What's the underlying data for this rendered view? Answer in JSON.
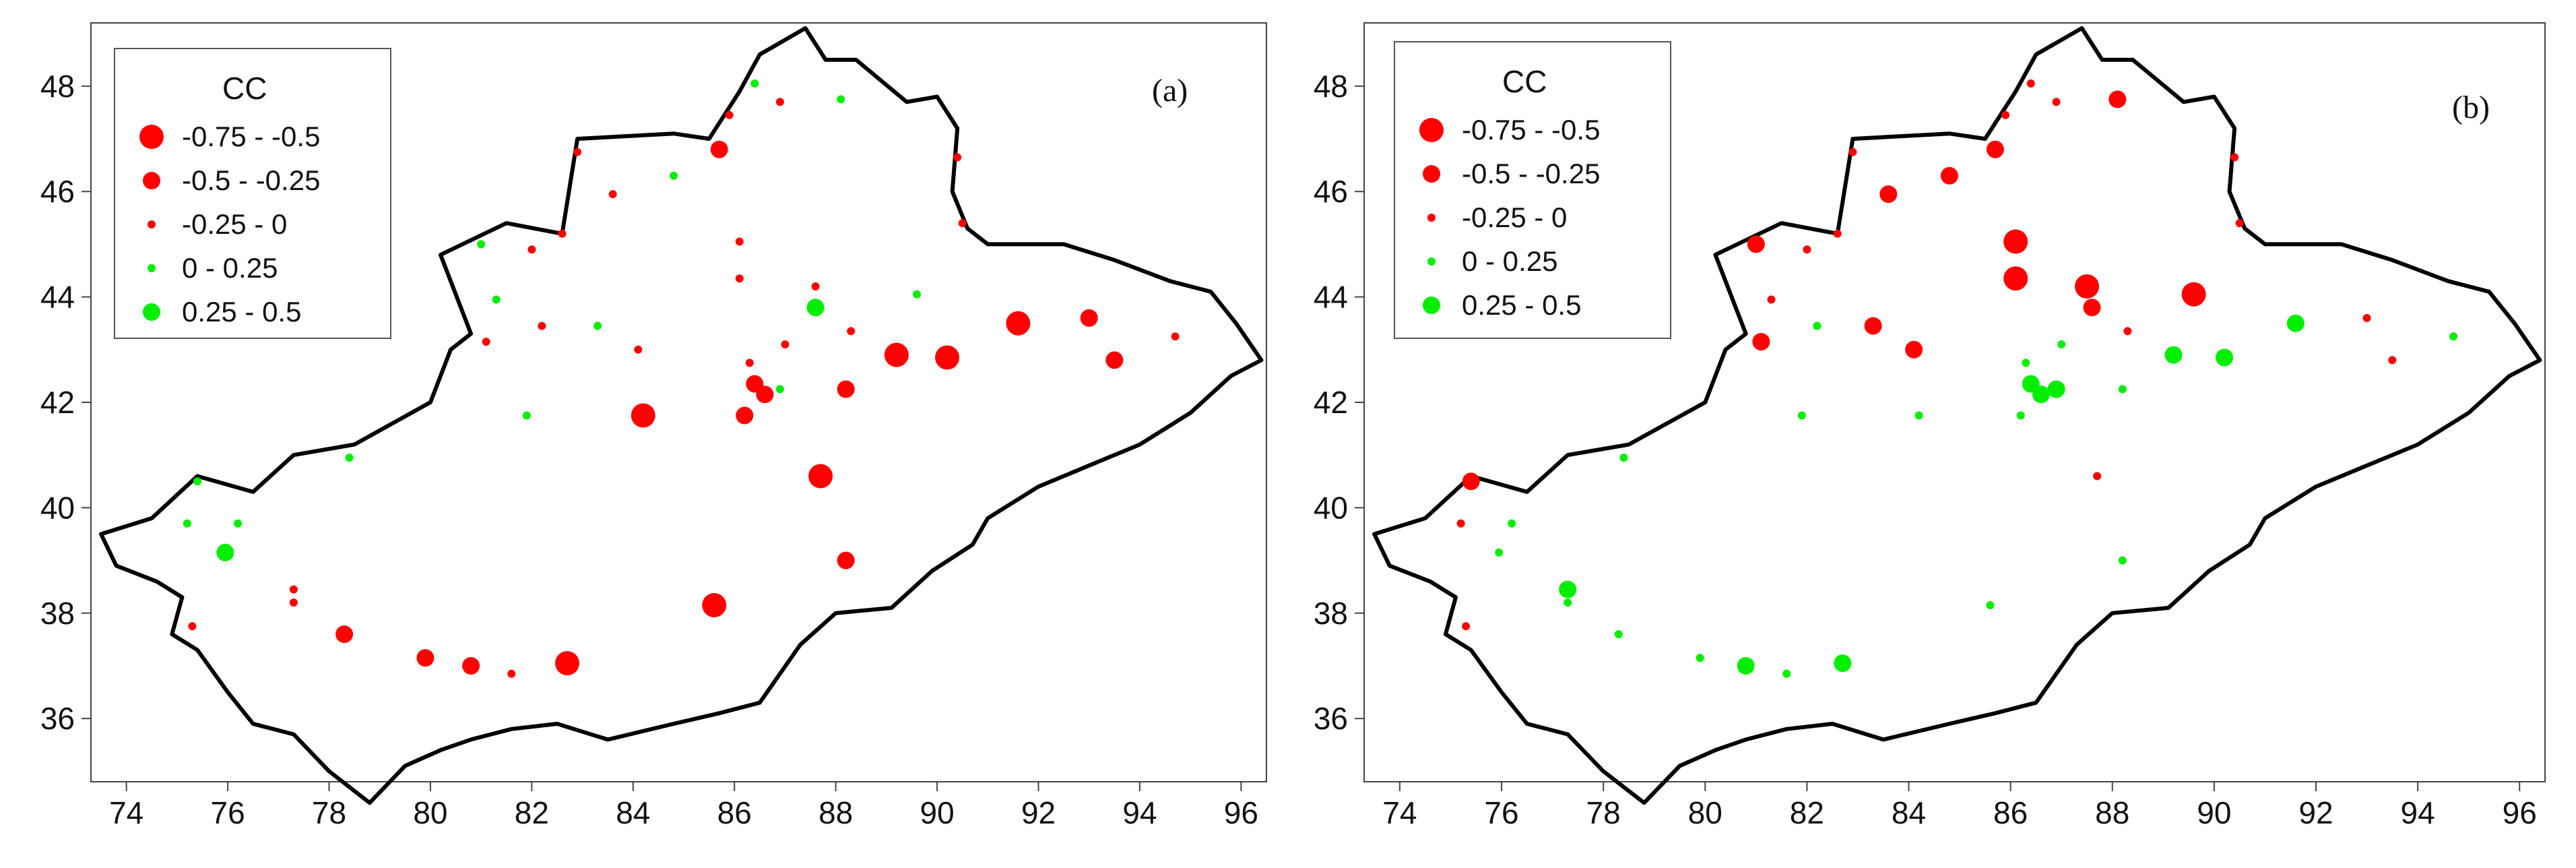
{
  "legend": {
    "title": "CC",
    "classes": [
      {
        "label": "-0.75  -  -0.5",
        "color": "#ff0000",
        "size": "xl"
      },
      {
        "label": "-0.5  -  -0.25",
        "color": "#ff0000",
        "size": "lg"
      },
      {
        "label": "-0.25  -  0",
        "color": "#ff0000",
        "size": "sm"
      },
      {
        "label": "0  -  0.25",
        "color": "#00ee00",
        "size": "sm"
      },
      {
        "label": "0.25  -  0.5",
        "color": "#00ee00",
        "size": "lg"
      }
    ]
  },
  "axes": {
    "lon_ticks": [
      74,
      76,
      78,
      80,
      82,
      84,
      86,
      88,
      90,
      92,
      94,
      96
    ],
    "lat_ticks": [
      36,
      38,
      40,
      42,
      44,
      46,
      48
    ],
    "lon_range": [
      73.3,
      96.5
    ],
    "lat_range": [
      34.8,
      49.2
    ]
  },
  "outline": [
    [
      73.5,
      39.5
    ],
    [
      74.5,
      39.8
    ],
    [
      75.4,
      40.6
    ],
    [
      76.5,
      40.3
    ],
    [
      77.3,
      41.0
    ],
    [
      78.5,
      41.2
    ],
    [
      80.0,
      42.0
    ],
    [
      80.4,
      43.0
    ],
    [
      80.8,
      43.3
    ],
    [
      80.2,
      44.8
    ],
    [
      81.5,
      45.4
    ],
    [
      82.6,
      45.2
    ],
    [
      82.9,
      47.0
    ],
    [
      84.8,
      47.1
    ],
    [
      85.5,
      47.0
    ],
    [
      86.1,
      47.9
    ],
    [
      86.5,
      48.6
    ],
    [
      87.4,
      49.1
    ],
    [
      87.8,
      48.5
    ],
    [
      88.4,
      48.5
    ],
    [
      89.4,
      47.7
    ],
    [
      90.0,
      47.8
    ],
    [
      90.4,
      47.2
    ],
    [
      90.3,
      46.0
    ],
    [
      90.6,
      45.3
    ],
    [
      91.0,
      45.0
    ],
    [
      92.5,
      45.0
    ],
    [
      93.5,
      44.7
    ],
    [
      94.6,
      44.3
    ],
    [
      95.4,
      44.1
    ],
    [
      95.9,
      43.5
    ],
    [
      96.4,
      42.8
    ],
    [
      95.8,
      42.5
    ],
    [
      95.0,
      41.8
    ],
    [
      94.0,
      41.2
    ],
    [
      93.0,
      40.8
    ],
    [
      92.0,
      40.4
    ],
    [
      91.0,
      39.8
    ],
    [
      90.7,
      39.3
    ],
    [
      89.9,
      38.8
    ],
    [
      89.1,
      38.1
    ],
    [
      88.0,
      38.0
    ],
    [
      87.3,
      37.4
    ],
    [
      86.5,
      36.3
    ],
    [
      85.7,
      36.1
    ],
    [
      84.8,
      35.9
    ],
    [
      83.5,
      35.6
    ],
    [
      82.5,
      35.9
    ],
    [
      81.6,
      35.8
    ],
    [
      80.8,
      35.6
    ],
    [
      80.2,
      35.4
    ],
    [
      79.5,
      35.1
    ],
    [
      78.8,
      34.4
    ],
    [
      78.0,
      35.0
    ],
    [
      77.3,
      35.7
    ],
    [
      76.5,
      35.9
    ],
    [
      76.0,
      36.5
    ],
    [
      75.4,
      37.3
    ],
    [
      74.9,
      37.6
    ],
    [
      75.1,
      38.3
    ],
    [
      74.6,
      38.6
    ],
    [
      73.8,
      38.9
    ],
    [
      73.5,
      39.5
    ]
  ],
  "panels": [
    {
      "label": "(a)",
      "stations": [
        {
          "lon": 86.4,
          "lat": 48.05,
          "cls": 3
        },
        {
          "lon": 88.1,
          "lat": 47.75,
          "cls": 3
        },
        {
          "lon": 85.9,
          "lat": 47.45,
          "cls": 2
        },
        {
          "lon": 86.9,
          "lat": 47.7,
          "cls": 2
        },
        {
          "lon": 82.9,
          "lat": 46.75,
          "cls": 2
        },
        {
          "lon": 85.7,
          "lat": 46.8,
          "cls": 1
        },
        {
          "lon": 84.8,
          "lat": 46.3,
          "cls": 3
        },
        {
          "lon": 90.4,
          "lat": 46.65,
          "cls": 2
        },
        {
          "lon": 83.6,
          "lat": 45.95,
          "cls": 2
        },
        {
          "lon": 90.5,
          "lat": 45.4,
          "cls": 2
        },
        {
          "lon": 81.0,
          "lat": 45.0,
          "cls": 3
        },
        {
          "lon": 82.0,
          "lat": 44.9,
          "cls": 2
        },
        {
          "lon": 82.6,
          "lat": 45.2,
          "cls": 2
        },
        {
          "lon": 86.1,
          "lat": 45.05,
          "cls": 2
        },
        {
          "lon": 86.1,
          "lat": 44.35,
          "cls": 2
        },
        {
          "lon": 87.6,
          "lat": 44.2,
          "cls": 2
        },
        {
          "lon": 87.6,
          "lat": 43.8,
          "cls": 4
        },
        {
          "lon": 89.6,
          "lat": 44.05,
          "cls": 3
        },
        {
          "lon": 81.3,
          "lat": 43.95,
          "cls": 3
        },
        {
          "lon": 82.2,
          "lat": 43.45,
          "cls": 2
        },
        {
          "lon": 83.3,
          "lat": 43.45,
          "cls": 3
        },
        {
          "lon": 81.1,
          "lat": 43.15,
          "cls": 2
        },
        {
          "lon": 84.1,
          "lat": 43.0,
          "cls": 2
        },
        {
          "lon": 87.0,
          "lat": 43.1,
          "cls": 2
        },
        {
          "lon": 88.3,
          "lat": 43.35,
          "cls": 2
        },
        {
          "lon": 89.2,
          "lat": 42.9,
          "cls": 0
        },
        {
          "lon": 90.2,
          "lat": 42.85,
          "cls": 0
        },
        {
          "lon": 91.6,
          "lat": 43.5,
          "cls": 0
        },
        {
          "lon": 93.0,
          "lat": 43.6,
          "cls": 1
        },
        {
          "lon": 94.7,
          "lat": 43.25,
          "cls": 2
        },
        {
          "lon": 93.5,
          "lat": 42.8,
          "cls": 1
        },
        {
          "lon": 86.3,
          "lat": 42.75,
          "cls": 2
        },
        {
          "lon": 86.4,
          "lat": 42.35,
          "cls": 1
        },
        {
          "lon": 86.6,
          "lat": 42.15,
          "cls": 1
        },
        {
          "lon": 86.9,
          "lat": 42.25,
          "cls": 3
        },
        {
          "lon": 88.2,
          "lat": 42.25,
          "cls": 1
        },
        {
          "lon": 86.2,
          "lat": 41.75,
          "cls": 1
        },
        {
          "lon": 84.2,
          "lat": 41.75,
          "cls": 0
        },
        {
          "lon": 81.9,
          "lat": 41.75,
          "cls": 3
        },
        {
          "lon": 78.4,
          "lat": 40.95,
          "cls": 3
        },
        {
          "lon": 75.4,
          "lat": 40.5,
          "cls": 3
        },
        {
          "lon": 75.2,
          "lat": 39.7,
          "cls": 3
        },
        {
          "lon": 76.2,
          "lat": 39.7,
          "cls": 3
        },
        {
          "lon": 75.95,
          "lat": 39.15,
          "cls": 4
        },
        {
          "lon": 87.7,
          "lat": 40.6,
          "cls": 0
        },
        {
          "lon": 88.2,
          "lat": 39.0,
          "cls": 1
        },
        {
          "lon": 77.3,
          "lat": 38.45,
          "cls": 2
        },
        {
          "lon": 77.3,
          "lat": 38.2,
          "cls": 2
        },
        {
          "lon": 75.3,
          "lat": 37.75,
          "cls": 2
        },
        {
          "lon": 78.3,
          "lat": 37.6,
          "cls": 1
        },
        {
          "lon": 85.6,
          "lat": 38.15,
          "cls": 0
        },
        {
          "lon": 79.9,
          "lat": 37.15,
          "cls": 1
        },
        {
          "lon": 80.8,
          "lat": 37.0,
          "cls": 1
        },
        {
          "lon": 81.6,
          "lat": 36.85,
          "cls": 2
        },
        {
          "lon": 82.7,
          "lat": 37.05,
          "cls": 0
        }
      ]
    },
    {
      "label": "(b)",
      "stations": [
        {
          "lon": 86.4,
          "lat": 48.05,
          "cls": 2
        },
        {
          "lon": 88.1,
          "lat": 47.75,
          "cls": 1
        },
        {
          "lon": 85.9,
          "lat": 47.45,
          "cls": 2
        },
        {
          "lon": 86.9,
          "lat": 47.7,
          "cls": 2
        },
        {
          "lon": 82.9,
          "lat": 46.75,
          "cls": 2
        },
        {
          "lon": 85.7,
          "lat": 46.8,
          "cls": 1
        },
        {
          "lon": 84.8,
          "lat": 46.3,
          "cls": 1
        },
        {
          "lon": 90.4,
          "lat": 46.65,
          "cls": 2
        },
        {
          "lon": 83.6,
          "lat": 45.95,
          "cls": 1
        },
        {
          "lon": 90.5,
          "lat": 45.4,
          "cls": 2
        },
        {
          "lon": 81.0,
          "lat": 45.0,
          "cls": 1
        },
        {
          "lon": 82.0,
          "lat": 44.9,
          "cls": 2
        },
        {
          "lon": 82.6,
          "lat": 45.2,
          "cls": 2
        },
        {
          "lon": 86.1,
          "lat": 45.05,
          "cls": 0
        },
        {
          "lon": 86.1,
          "lat": 44.35,
          "cls": 0
        },
        {
          "lon": 87.5,
          "lat": 44.2,
          "cls": 0
        },
        {
          "lon": 87.6,
          "lat": 43.8,
          "cls": 1
        },
        {
          "lon": 89.6,
          "lat": 44.05,
          "cls": 0
        },
        {
          "lon": 81.3,
          "lat": 43.95,
          "cls": 2
        },
        {
          "lon": 82.2,
          "lat": 43.45,
          "cls": 3
        },
        {
          "lon": 83.3,
          "lat": 43.45,
          "cls": 1
        },
        {
          "lon": 81.1,
          "lat": 43.15,
          "cls": 1
        },
        {
          "lon": 84.1,
          "lat": 43.0,
          "cls": 1
        },
        {
          "lon": 87.0,
          "lat": 43.1,
          "cls": 3
        },
        {
          "lon": 88.3,
          "lat": 43.35,
          "cls": 2
        },
        {
          "lon": 89.2,
          "lat": 42.9,
          "cls": 4
        },
        {
          "lon": 90.2,
          "lat": 42.85,
          "cls": 4
        },
        {
          "lon": 91.6,
          "lat": 43.5,
          "cls": 4
        },
        {
          "lon": 93.0,
          "lat": 43.6,
          "cls": 2
        },
        {
          "lon": 94.7,
          "lat": 43.25,
          "cls": 3
        },
        {
          "lon": 93.5,
          "lat": 42.8,
          "cls": 2
        },
        {
          "lon": 86.3,
          "lat": 42.75,
          "cls": 3
        },
        {
          "lon": 86.4,
          "lat": 42.35,
          "cls": 4
        },
        {
          "lon": 86.6,
          "lat": 42.15,
          "cls": 4
        },
        {
          "lon": 86.9,
          "lat": 42.25,
          "cls": 4
        },
        {
          "lon": 88.2,
          "lat": 42.25,
          "cls": 3
        },
        {
          "lon": 86.2,
          "lat": 41.75,
          "cls": 3
        },
        {
          "lon": 84.2,
          "lat": 41.75,
          "cls": 3
        },
        {
          "lon": 81.9,
          "lat": 41.75,
          "cls": 3
        },
        {
          "lon": 78.4,
          "lat": 40.95,
          "cls": 3
        },
        {
          "lon": 75.4,
          "lat": 40.5,
          "cls": 1
        },
        {
          "lon": 75.2,
          "lat": 39.7,
          "cls": 2
        },
        {
          "lon": 76.2,
          "lat": 39.7,
          "cls": 3
        },
        {
          "lon": 75.95,
          "lat": 39.15,
          "cls": 3
        },
        {
          "lon": 87.7,
          "lat": 40.6,
          "cls": 2
        },
        {
          "lon": 88.2,
          "lat": 39.0,
          "cls": 3
        },
        {
          "lon": 77.3,
          "lat": 38.45,
          "cls": 4
        },
        {
          "lon": 77.3,
          "lat": 38.2,
          "cls": 3
        },
        {
          "lon": 75.3,
          "lat": 37.75,
          "cls": 2
        },
        {
          "lon": 78.3,
          "lat": 37.6,
          "cls": 3
        },
        {
          "lon": 85.6,
          "lat": 38.15,
          "cls": 3
        },
        {
          "lon": 79.9,
          "lat": 37.15,
          "cls": 3
        },
        {
          "lon": 80.8,
          "lat": 37.0,
          "cls": 4
        },
        {
          "lon": 81.6,
          "lat": 36.85,
          "cls": 3
        },
        {
          "lon": 82.7,
          "lat": 37.05,
          "cls": 4
        }
      ]
    }
  ]
}
